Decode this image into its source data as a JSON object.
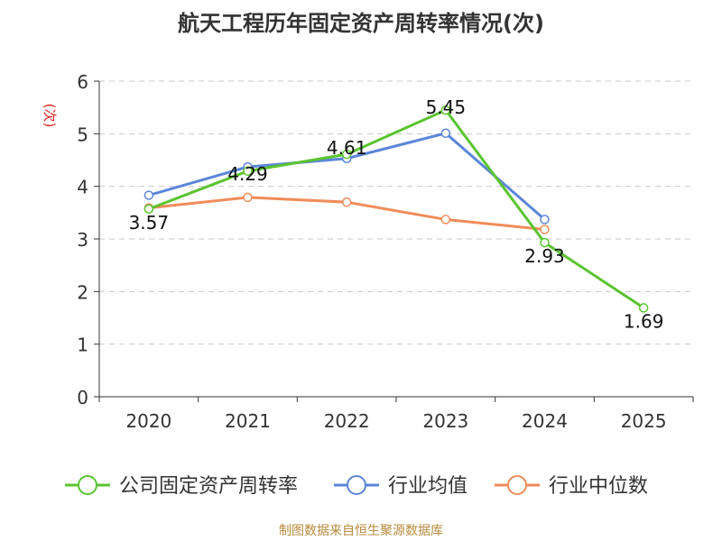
{
  "chart_data": {
    "type": "line",
    "title": "航天工程历年固定资产周转率情况(次)",
    "ylabel": "(次)",
    "xlabel": "",
    "categories": [
      "2020",
      "2021",
      "2022",
      "2023",
      "2024",
      "2025"
    ],
    "ylim": [
      0,
      6
    ],
    "yticks": [
      0,
      1,
      2,
      3,
      4,
      5,
      6
    ],
    "grid": true,
    "legend_position": "bottom",
    "series": [
      {
        "name": "公司固定资产周转率",
        "color": "#5ac430",
        "values": [
          3.57,
          4.29,
          4.61,
          5.45,
          2.93,
          1.69
        ],
        "labels": [
          "3.57",
          "4.29",
          "4.61",
          "5.45",
          "2.93",
          "1.69"
        ]
      },
      {
        "name": "行业均值",
        "color": "#5b86d9",
        "values": [
          3.83,
          4.37,
          4.53,
          5.01,
          3.37,
          null
        ]
      },
      {
        "name": "行业中位数",
        "color": "#f08c5a",
        "values": [
          3.59,
          3.79,
          3.7,
          3.37,
          3.18,
          null
        ]
      }
    ],
    "source": "制图数据来自恒生聚源数据库"
  }
}
